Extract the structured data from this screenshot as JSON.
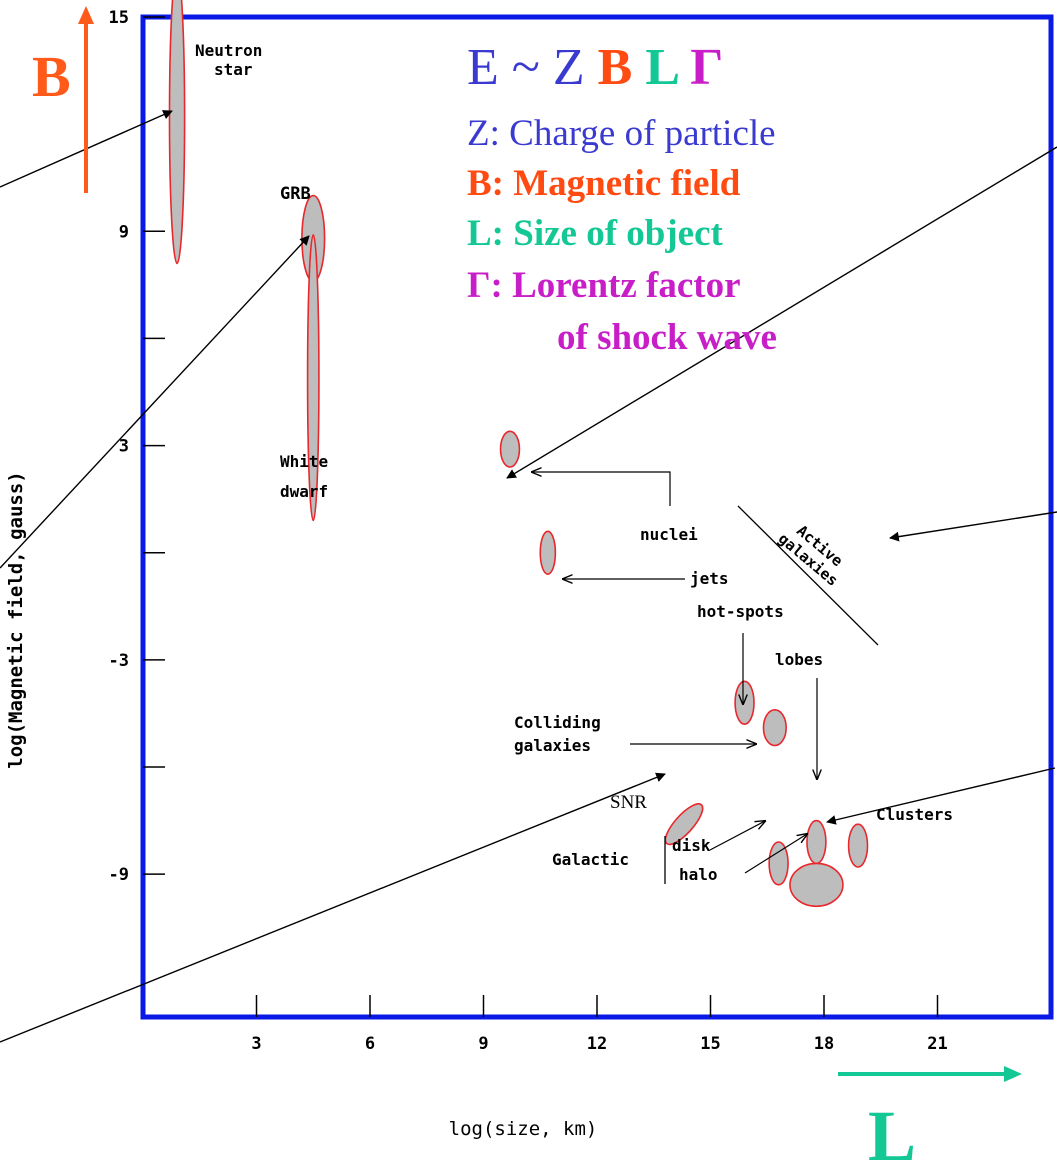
{
  "chart_data": {
    "type": "scatter",
    "title": "",
    "xlabel": "log(size, km)",
    "ylabel": "log(Magnetic field, gauss)",
    "xlim": [
      0,
      24
    ],
    "ylim": [
      -13,
      15
    ],
    "x_ticks": [
      3,
      6,
      9,
      12,
      15,
      18,
      21
    ],
    "y_ticks": [
      15,
      9,
      3,
      -3,
      -9
    ],
    "y_minor_ticks": [
      6,
      0,
      -6
    ],
    "objects": [
      {
        "label": "Neutron star",
        "x": 0.9,
        "y": 12.2,
        "x_span": [
          0.7,
          1.1
        ],
        "y_span": [
          8.1,
          16.3
        ]
      },
      {
        "label": "GRB",
        "x": 4.5,
        "y": 8.8,
        "x_span": [
          4.2,
          4.8
        ],
        "y_span": [
          7.6,
          10.0
        ]
      },
      {
        "label": "White dwarf",
        "x": 4.5,
        "y": 4.9,
        "x_span": [
          4.35,
          4.65
        ],
        "y_span": [
          0.9,
          8.9
        ]
      },
      {
        "label": "Active galaxy nuclei",
        "x": 9.7,
        "y": 2.9,
        "x_span": [
          9.45,
          9.95
        ],
        "y_span": [
          2.4,
          3.4
        ]
      },
      {
        "label": "jets",
        "x": 10.7,
        "y": 0.0,
        "x_span": [
          10.5,
          10.9
        ],
        "y_span": [
          -0.6,
          0.6
        ]
      },
      {
        "label": "hot-spots",
        "x": 15.9,
        "y": -4.2,
        "x_span": [
          15.65,
          16.15
        ],
        "y_span": [
          -4.8,
          -3.6
        ]
      },
      {
        "label": "Colliding galaxies",
        "x": 16.7,
        "y": -4.9,
        "x_span": [
          16.4,
          17.0
        ],
        "y_span": [
          -5.4,
          -4.4
        ]
      },
      {
        "label": "SNR",
        "x": 14.3,
        "y": -7.6,
        "x_span": [
          13.7,
          14.9
        ],
        "y_span": [
          -9.0,
          -6.2
        ]
      },
      {
        "label": "Galactic disk",
        "x": 16.8,
        "y": -8.7,
        "x_span": [
          16.55,
          17.05
        ],
        "y_span": [
          -9.3,
          -8.1
        ]
      },
      {
        "label": "lobes",
        "x": 17.8,
        "y": -8.1,
        "x_span": [
          17.55,
          18.05
        ],
        "y_span": [
          -8.7,
          -7.5
        ]
      },
      {
        "label": "Galactic halo",
        "x": 17.8,
        "y": -9.3,
        "x_span": [
          17.2,
          18.6
        ],
        "y_span": [
          -9.9,
          -8.7
        ]
      },
      {
        "label": "Clusters",
        "x": 18.9,
        "y": -8.2,
        "x_span": [
          18.65,
          19.15
        ],
        "y_span": [
          -8.8,
          -7.6
        ]
      }
    ],
    "text_labels": {
      "neutron": [
        "Neutron",
        "star"
      ],
      "grb": "GRB",
      "white": [
        "White",
        "dwarf"
      ],
      "active": [
        "Active",
        "galaxies"
      ],
      "nuclei": "nuclei",
      "jets": "jets",
      "hotspots": "hot-spots",
      "lobes": "lobes",
      "colliding": [
        "Colliding",
        "galaxies"
      ],
      "snr": "SNR",
      "galactic": "Galactic",
      "disk": "disk",
      "halo": "halo",
      "clusters": "Clusters"
    },
    "legend": {
      "formula": [
        {
          "text": "E ~ Z ",
          "color": "#3a3ad0"
        },
        {
          "text": "B ",
          "color": "#ff4a12"
        },
        {
          "text": "L ",
          "color": "#14c896"
        },
        {
          "text": "Γ",
          "color": "#c81ec8"
        }
      ],
      "lines": [
        [
          {
            "text": "Z",
            "color": "#3a3ad0"
          },
          {
            "text": ": Charge of particle",
            "color": "#3a3ad0"
          }
        ],
        [
          {
            "text": "B: Magnetic field",
            "color": "#ff4a12",
            "bold": true
          }
        ],
        [
          {
            "text": "L: Size of object",
            "color": "#14c896",
            "bold": true
          }
        ],
        [
          {
            "text": "Γ: Lorentz factor",
            "color": "#c81ec8",
            "bold": true
          }
        ],
        [
          {
            "text": "of shock wave",
            "color": "#c81ec8",
            "bold": true
          }
        ]
      ]
    },
    "axis_arrows": {
      "B": {
        "label": "B",
        "color": "#ff5a1a"
      },
      "L": {
        "label": "L",
        "color": "#14c896"
      }
    },
    "colors": {
      "frame": "#0a1ae6",
      "object_fill": "#bdbdbd",
      "object_stroke": "#e8282d",
      "text": "#000000"
    }
  }
}
